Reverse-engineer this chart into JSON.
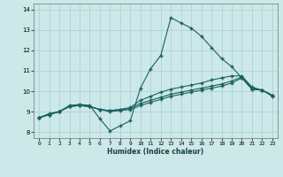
{
  "xlabel": "Humidex (Indice chaleur)",
  "background_color": "#cce8e8",
  "grid_color": "#a8d0d0",
  "line_color": "#1a6060",
  "xlim": [
    -0.5,
    23.5
  ],
  "ylim": [
    7.7,
    14.3
  ],
  "xticks": [
    0,
    1,
    2,
    3,
    4,
    5,
    6,
    7,
    8,
    9,
    10,
    11,
    12,
    13,
    14,
    15,
    16,
    17,
    18,
    19,
    20,
    21,
    22,
    23
  ],
  "yticks": [
    8,
    9,
    10,
    11,
    12,
    13,
    14
  ],
  "line1_x": [
    0,
    1,
    2,
    3,
    4,
    5,
    6,
    7,
    8,
    9,
    10,
    11,
    12,
    13,
    14,
    15,
    16,
    17,
    18,
    19,
    20,
    21,
    22,
    23
  ],
  "line1_y": [
    8.7,
    8.9,
    9.0,
    9.3,
    9.35,
    9.3,
    8.65,
    8.05,
    8.3,
    8.55,
    10.15,
    11.1,
    11.75,
    13.6,
    13.35,
    13.1,
    12.7,
    12.15,
    11.6,
    11.2,
    10.65,
    10.1,
    10.05,
    9.75
  ],
  "line2_x": [
    0,
    1,
    2,
    3,
    4,
    5,
    6,
    7,
    8,
    9,
    10,
    11,
    12,
    13,
    14,
    15,
    16,
    17,
    18,
    19,
    20,
    21,
    22,
    23
  ],
  "line2_y": [
    8.7,
    8.85,
    9.0,
    9.25,
    9.3,
    9.25,
    9.1,
    9.0,
    9.05,
    9.1,
    9.3,
    9.45,
    9.6,
    9.75,
    9.85,
    9.95,
    10.05,
    10.15,
    10.25,
    10.4,
    10.65,
    10.1,
    10.05,
    9.8
  ],
  "line3_x": [
    0,
    1,
    2,
    3,
    4,
    5,
    6,
    7,
    8,
    9,
    10,
    11,
    12,
    13,
    14,
    15,
    16,
    17,
    18,
    19,
    20,
    21,
    22,
    23
  ],
  "line3_y": [
    8.7,
    8.85,
    9.0,
    9.25,
    9.3,
    9.25,
    9.1,
    9.05,
    9.1,
    9.15,
    9.4,
    9.55,
    9.7,
    9.85,
    9.95,
    10.05,
    10.15,
    10.25,
    10.35,
    10.5,
    10.7,
    10.15,
    10.05,
    9.8
  ],
  "line4_x": [
    0,
    1,
    2,
    3,
    4,
    5,
    6,
    7,
    8,
    9,
    10,
    11,
    12,
    13,
    14,
    15,
    16,
    17,
    18,
    19,
    20,
    21,
    22,
    23
  ],
  "line4_y": [
    8.7,
    8.85,
    9.0,
    9.25,
    9.3,
    9.25,
    9.1,
    9.05,
    9.1,
    9.2,
    9.55,
    9.75,
    9.95,
    10.1,
    10.2,
    10.3,
    10.4,
    10.55,
    10.65,
    10.75,
    10.75,
    10.2,
    10.05,
    9.8
  ]
}
